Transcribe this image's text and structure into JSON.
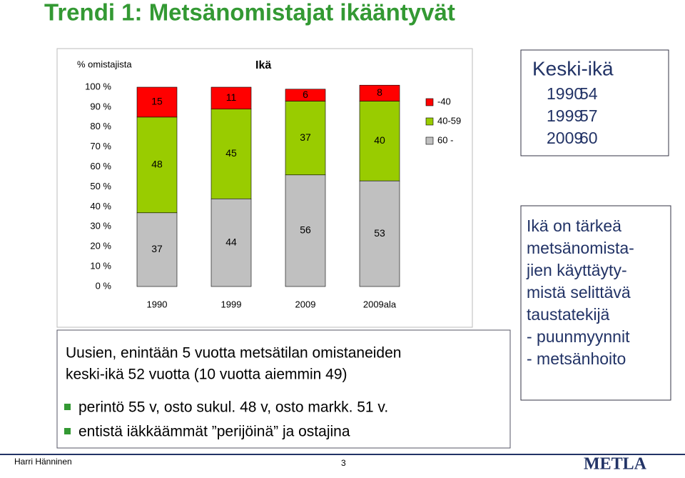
{
  "title": "Trendi 1: Metsänomistajat ikääntyvät",
  "chart_data": {
    "type": "bar",
    "stacked": true,
    "y_axis_label": "% omistajista",
    "legend_title": "Ikä",
    "categories": [
      "1990",
      "1999",
      "2009",
      "2009ala"
    ],
    "series": [
      {
        "name": "60 -",
        "color": "#c0c0c0",
        "values": [
          37,
          44,
          56,
          53
        ]
      },
      {
        "name": "40-59",
        "color": "#99cc00",
        "values": [
          48,
          45,
          37,
          40
        ]
      },
      {
        "name": "-40",
        "color": "#ff0000",
        "values": [
          15,
          11,
          6,
          8
        ]
      }
    ],
    "ylim": [
      0,
      100
    ],
    "yticks": [
      {
        "value": 0,
        "label": "0 %"
      },
      {
        "value": 10,
        "label": "10 %"
      },
      {
        "value": 20,
        "label": "20 %"
      },
      {
        "value": 30,
        "label": "30 %"
      },
      {
        "value": 40,
        "label": "40 %"
      },
      {
        "value": 50,
        "label": "50 %"
      },
      {
        "value": 60,
        "label": "60 %"
      },
      {
        "value": 70,
        "label": "70 %"
      },
      {
        "value": 80,
        "label": "80 %"
      },
      {
        "value": 90,
        "label": "90 %"
      },
      {
        "value": 100,
        "label": "100 %"
      }
    ],
    "grid": false
  },
  "keski_ika": {
    "title": "Keski-ikä",
    "rows": [
      [
        "1990",
        "54"
      ],
      [
        "1999",
        "57"
      ],
      [
        "2009",
        "60"
      ]
    ]
  },
  "text_box": {
    "lines": [
      "Uusien, enintään 5 vuotta metsätilan omistaneiden",
      "keski-ikä 52 vuotta (10 vuotta aiemmin 49)"
    ],
    "bullets": [
      "perintö 55 v, osto sukul. 48 v, osto markk. 51 v.",
      "entistä iäkkäämmät ”perijöinä” ja ostajina"
    ]
  },
  "side_note": {
    "lines": [
      "Ikä on tärkeä",
      "metsänomista-",
      "jien käyttäyty-",
      "mistä selittävä",
      "taustatekijä",
      "- puunmyynnit",
      "- metsänhoito"
    ]
  },
  "footer": {
    "author": "Harri Hänninen",
    "page": "3",
    "logo": "METLA"
  }
}
